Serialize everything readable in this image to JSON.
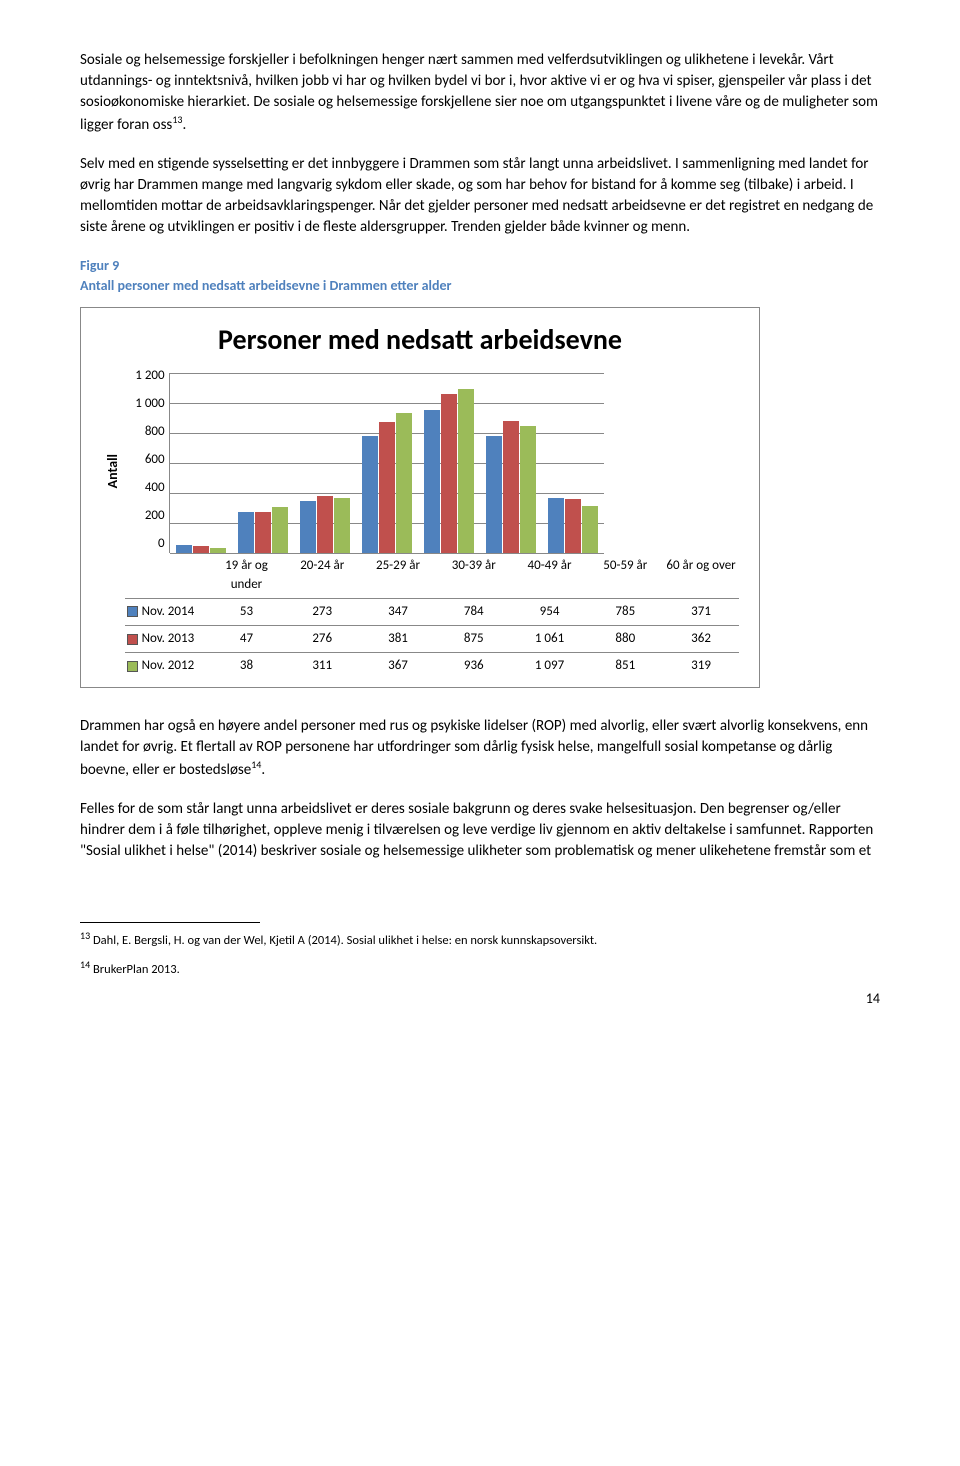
{
  "paragraphs": {
    "p1": "Sosiale og helsemessige forskjeller i befolkningen henger nært sammen med velferdsutviklingen og ulikhetene i levekår. Vårt utdannings- og inntektsnivå, hvilken jobb vi har og hvilken bydel vi bor i, hvor aktive vi er og hva vi spiser, gjenspeiler vår plass i det sosioøkonomiske hierarkiet. De sosiale og helsemessige forskjellene sier noe om utgangspunktet i livene våre og de muligheter som ligger foran oss",
    "p1_sup": "13",
    "p1_end": ".",
    "p2": "Selv med en stigende sysselsetting er det innbyggere i Drammen som står langt unna arbeidslivet. I sammenligning med landet for øvrig har Drammen mange med langvarig sykdom eller skade, og som har behov for bistand for å komme seg (tilbake) i arbeid. I mellomtiden mottar de arbeidsavklaringspenger. Når det gjelder personer med nedsatt arbeidsevne er det registret en nedgang de siste årene og utviklingen er positiv i de fleste aldersgrupper. Trenden gjelder både kvinner og menn.",
    "p3": "Drammen har også en høyere andel personer med rus og psykiske lidelser (ROP) med alvorlig, eller svært alvorlig konsekvens, enn landet for øvrig. Et flertall av ROP personene har utfordringer som dårlig fysisk helse, mangelfull sosial kompetanse og dårlig boevne, eller er bostedsløse",
    "p3_sup": "14",
    "p3_end": ".",
    "p4": "Felles for de som står langt unna arbeidslivet er deres sosiale bakgrunn og deres svake helsesituasjon. Den begrenser og/eller hindrer dem i å føle tilhørighet, oppleve menig i tilværelsen og leve verdige liv gjennom en aktiv deltakelse i samfunnet. Rapporten \"Sosial ulikhet i helse\" (2014) beskriver sosiale og helsemessige ulikheter som problematisk og mener ulikehetene fremstår som et"
  },
  "figure": {
    "label": "Figur 9",
    "caption": "Antall personer med nedsatt arbeidsevne i Drammen etter alder"
  },
  "chart": {
    "title": "Personer med nedsatt arbeidsevne",
    "y_label": "Antall",
    "y_max": 1200,
    "y_ticks": [
      "1 200",
      "1 000",
      "800",
      "600",
      "400",
      "200",
      "0"
    ],
    "categories": [
      "19 år og under",
      "20-24 år",
      "25-29 år",
      "30-39 år",
      "40-49 år",
      "50-59 år",
      "60 år og over"
    ],
    "series": [
      {
        "name": "Nov. 2014",
        "color": "#4f81bd",
        "values": [
          53,
          273,
          347,
          784,
          954,
          785,
          371
        ],
        "display": [
          "53",
          "273",
          "347",
          "784",
          "954",
          "785",
          "371"
        ]
      },
      {
        "name": "Nov. 2013",
        "color": "#c0504d",
        "values": [
          47,
          276,
          381,
          875,
          1061,
          880,
          362
        ],
        "display": [
          "47",
          "276",
          "381",
          "875",
          "1 061",
          "880",
          "362"
        ]
      },
      {
        "name": "Nov. 2012",
        "color": "#9bbb59",
        "values": [
          38,
          311,
          367,
          936,
          1097,
          851,
          319
        ],
        "display": [
          "38",
          "311",
          "367",
          "936",
          "1 097",
          "851",
          "319"
        ]
      }
    ],
    "grid_color": "#888888",
    "background": "#ffffff"
  },
  "footnotes": {
    "f13_num": "13",
    "f13": " Dahl, E. Bergsli, H. og van der Wel, Kjetil A (2014). Sosial ulikhet i helse: en norsk kunnskapsoversikt.",
    "f14_num": "14",
    "f14": " BrukerPlan 2013."
  },
  "page_number": "14"
}
